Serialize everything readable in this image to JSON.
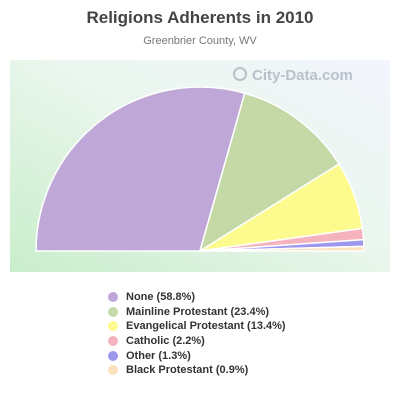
{
  "chart_data": {
    "type": "pie",
    "style": "half-pie",
    "title": "Religions Adherents in 2010",
    "subtitle": "Greenbrier County, WV",
    "watermark": "City-Data.com",
    "legend_position": "bottom",
    "slices": [
      {
        "label": "None (58.8%)",
        "value": 58.8,
        "color": "#bfa8d8"
      },
      {
        "label": "Mainline Protestant (23.4%)",
        "value": 23.4,
        "color": "#c4d9a6"
      },
      {
        "label": "Evangelical Protestant (13.4%)",
        "value": 13.4,
        "color": "#fdfa8e"
      },
      {
        "label": "Catholic (2.2%)",
        "value": 2.2,
        "color": "#f4b3bd"
      },
      {
        "label": "Other (1.3%)",
        "value": 1.3,
        "color": "#9d97ee"
      },
      {
        "label": "Black Protestant (0.9%)",
        "value": 0.9,
        "color": "#fbe1bd"
      }
    ]
  }
}
